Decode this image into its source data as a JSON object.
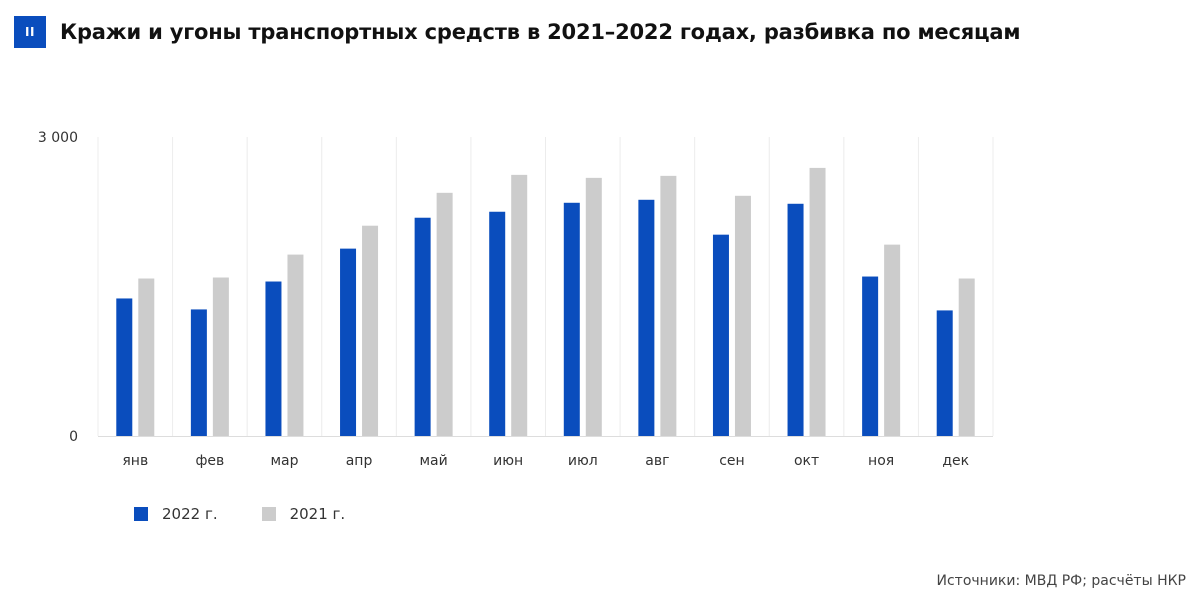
{
  "header": {
    "badge": "II",
    "title": "Кражи и угоны транспортных средств в 2021–2022 годах, разбивка по месяцам"
  },
  "chart_data": {
    "type": "bar",
    "title": "Кражи и угоны транспортных средств в 2021–2022 годах, разбивка по месяцам",
    "categories": [
      "янв",
      "фев",
      "мар",
      "апр",
      "май",
      "июн",
      "июл",
      "авг",
      "сен",
      "окт",
      "ноя",
      "дек"
    ],
    "series": [
      {
        "name": "2022 г.",
        "color": "#0a4dbd",
        "values": [
          1380,
          1270,
          1550,
          1880,
          2190,
          2250,
          2340,
          2370,
          2020,
          2330,
          1600,
          1260
        ]
      },
      {
        "name": "2021 г.",
        "color": "#cccccc",
        "values": [
          1580,
          1590,
          1820,
          2110,
          2440,
          2620,
          2590,
          2610,
          2410,
          2690,
          1920,
          1580
        ]
      }
    ],
    "yticks": [
      "3 000",
      "0"
    ],
    "ylim": [
      0,
      3000
    ],
    "xlabel": "",
    "ylabel": "",
    "grid": "vertical",
    "legend": "bottom-left"
  },
  "legend": {
    "items": [
      {
        "label": "2022 г.",
        "color": "#0a4dbd"
      },
      {
        "label": "2021 г.",
        "color": "#cccccc"
      }
    ]
  },
  "source": "Источники: МВД РФ; расчёты НКР"
}
